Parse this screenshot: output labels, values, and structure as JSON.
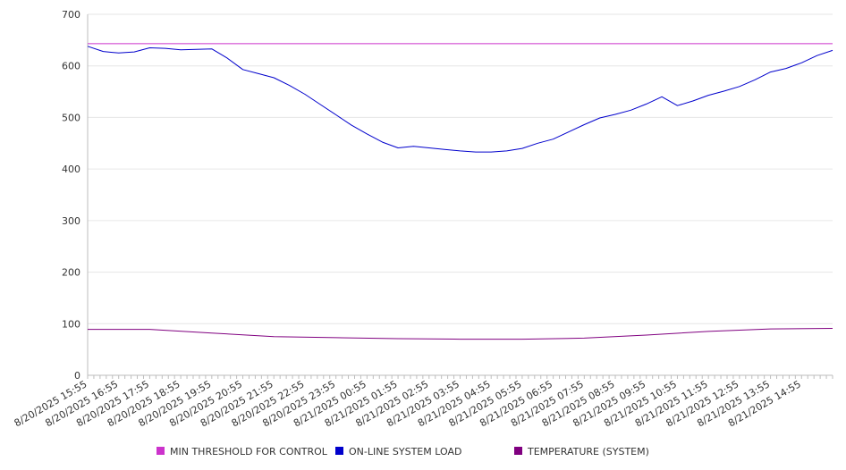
{
  "chart_data": {
    "type": "line",
    "title": "",
    "xlabel": "",
    "ylabel": "",
    "ylim": [
      0,
      700
    ],
    "yticks": [
      "0",
      "100",
      "200",
      "300",
      "400",
      "500",
      "600",
      "700"
    ],
    "xlim": [
      "8/20/2025 15:55",
      "8/21/2025 15:55"
    ],
    "xtick_labels": [
      "8/20/2025 15:55",
      "8/20/2025 16:55",
      "8/20/2025 17:55",
      "8/20/2025 18:55",
      "8/20/2025 19:55",
      "8/20/2025 20:55",
      "8/20/2025 21:55",
      "8/20/2025 22:55",
      "8/20/2025 23:55",
      "8/21/2025 00:55",
      "8/21/2025 01:55",
      "8/21/2025 02:55",
      "8/21/2025 03:55",
      "8/21/2025 04:55",
      "8/21/2025 05:55",
      "8/21/2025 06:55",
      "8/21/2025 07:55",
      "8/21/2025 08:55",
      "8/21/2025 09:55",
      "8/21/2025 10:55",
      "8/21/2025 11:55",
      "8/21/2025 12:55",
      "8/21/2025 13:55",
      "8/21/2025 14:55"
    ],
    "grid": true,
    "legend_position": "bottom",
    "series": [
      {
        "name": "MIN THRESHOLD FOR CONTROL",
        "color": "#cc33cc",
        "x": [
          "8/20/2025 15:55",
          "8/21/2025 15:55"
        ],
        "values": [
          643,
          643
        ]
      },
      {
        "name": "ON-LINE SYSTEM LOAD",
        "color": "#0000cc",
        "x": [
          "8/20/2025 15:55",
          "8/20/2025 16:25",
          "8/20/2025 16:55",
          "8/20/2025 17:25",
          "8/20/2025 17:55",
          "8/20/2025 18:25",
          "8/20/2025 18:55",
          "8/20/2025 19:25",
          "8/20/2025 19:55",
          "8/20/2025 20:25",
          "8/20/2025 20:55",
          "8/20/2025 21:25",
          "8/20/2025 21:55",
          "8/20/2025 22:25",
          "8/20/2025 22:55",
          "8/20/2025 23:25",
          "8/20/2025 23:55",
          "8/21/2025 00:25",
          "8/21/2025 00:55",
          "8/21/2025 01:25",
          "8/21/2025 01:55",
          "8/21/2025 02:25",
          "8/21/2025 02:55",
          "8/21/2025 03:25",
          "8/21/2025 03:55",
          "8/21/2025 04:25",
          "8/21/2025 04:55",
          "8/21/2025 05:25",
          "8/21/2025 05:55",
          "8/21/2025 06:25",
          "8/21/2025 06:55",
          "8/21/2025 07:25",
          "8/21/2025 07:55",
          "8/21/2025 08:25",
          "8/21/2025 08:55",
          "8/21/2025 09:25",
          "8/21/2025 09:55",
          "8/21/2025 10:25",
          "8/21/2025 10:55",
          "8/21/2025 11:25",
          "8/21/2025 11:55",
          "8/21/2025 12:25",
          "8/21/2025 12:55",
          "8/21/2025 13:25",
          "8/21/2025 13:55",
          "8/21/2025 14:25",
          "8/21/2025 14:55",
          "8/21/2025 15:25",
          "8/21/2025 15:55"
        ],
        "values": [
          638,
          628,
          625,
          627,
          635,
          634,
          631,
          632,
          633,
          615,
          593,
          585,
          577,
          562,
          545,
          525,
          505,
          485,
          468,
          452,
          441,
          444,
          441,
          438,
          435,
          433,
          433,
          435,
          440,
          450,
          458,
          472,
          486,
          499,
          506,
          514,
          526,
          540,
          523,
          532,
          543,
          551,
          560,
          573,
          588,
          595,
          606,
          620,
          630
        ]
      },
      {
        "name": "TEMPERATURE (SYSTEM)",
        "color": "#800080",
        "x": [
          "8/20/2025 15:55",
          "8/20/2025 17:55",
          "8/20/2025 19:55",
          "8/20/2025 21:55",
          "8/20/2025 23:55",
          "8/21/2025 01:55",
          "8/21/2025 03:55",
          "8/21/2025 05:55",
          "8/21/2025 07:55",
          "8/21/2025 09:55",
          "8/21/2025 11:55",
          "8/21/2025 13:55",
          "8/21/2025 15:55"
        ],
        "values": [
          89,
          89,
          82,
          75,
          73,
          71,
          70,
          70,
          72,
          78,
          85,
          90,
          91
        ]
      }
    ]
  }
}
